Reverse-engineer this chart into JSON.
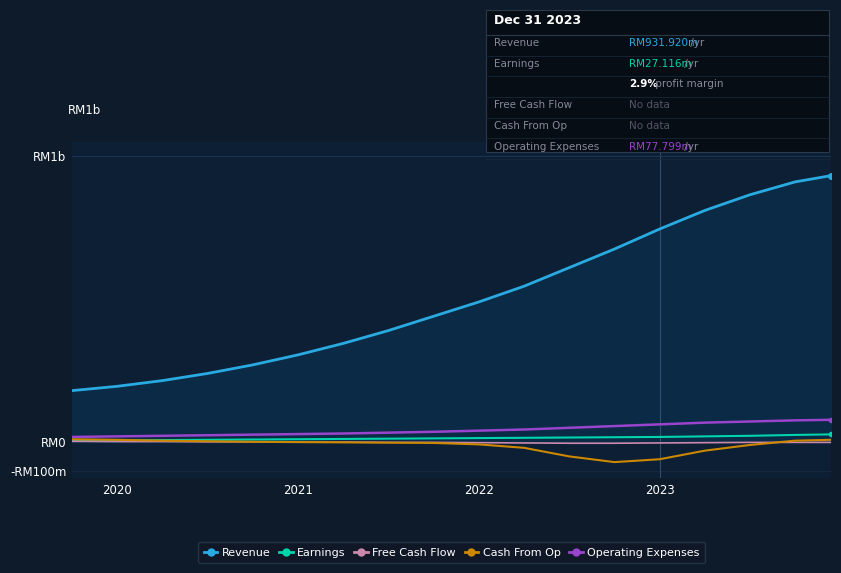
{
  "bg_color": "#0d1b2a",
  "chart_bg": "#0d1f35",
  "info_box_bg": "#070d14",
  "x_years": [
    2019.75,
    2020.0,
    2020.25,
    2020.5,
    2020.75,
    2021.0,
    2021.25,
    2021.5,
    2021.75,
    2022.0,
    2022.25,
    2022.5,
    2022.75,
    2023.0,
    2023.25,
    2023.5,
    2023.75,
    2023.95
  ],
  "revenue": [
    180,
    195,
    215,
    240,
    270,
    305,
    345,
    390,
    440,
    490,
    545,
    610,
    675,
    745,
    810,
    865,
    910,
    932
  ],
  "earnings": [
    5,
    6,
    7,
    8,
    9,
    10,
    11,
    12,
    13,
    14,
    15,
    16,
    17,
    18,
    20,
    22,
    25,
    27
  ],
  "free_cash_flow": [
    3,
    2,
    2,
    1,
    1,
    0,
    0,
    -1,
    -1,
    -2,
    -3,
    -4,
    -4,
    -3,
    -2,
    -1,
    -1,
    -1
  ],
  "cash_from_op": [
    10,
    8,
    5,
    3,
    1,
    0,
    -1,
    -2,
    -3,
    -8,
    -20,
    -50,
    -70,
    -60,
    -30,
    -10,
    5,
    8
  ],
  "operating_expenses": [
    18,
    20,
    22,
    24,
    26,
    28,
    30,
    33,
    36,
    40,
    44,
    50,
    56,
    62,
    68,
    72,
    76,
    78
  ],
  "revenue_color": "#29abe2",
  "earnings_color": "#00d4aa",
  "fcf_color": "#cc88aa",
  "cfo_color": "#cc8800",
  "opex_color": "#9944cc",
  "area_fill_color": "#0a2a45",
  "ylim_min": -125,
  "ylim_max": 1050,
  "ytick_vals": [
    -100,
    0,
    1000
  ],
  "ytick_labels": [
    "-RM100m",
    "RM0",
    "RM1b"
  ],
  "xtick_vals": [
    2020,
    2021,
    2022,
    2023
  ],
  "xtick_labels": [
    "2020",
    "2021",
    "2022",
    "2023"
  ],
  "vline_x": 2023.0,
  "info_title": "Dec 31 2023",
  "info_rows": [
    {
      "label": "Revenue",
      "value": "RM931.920m",
      "suffix": " /yr",
      "value_color": "#29abe2",
      "bold": false
    },
    {
      "label": "Earnings",
      "value": "RM27.116m",
      "suffix": " /yr",
      "value_color": "#00d4aa",
      "bold": false
    },
    {
      "label": "",
      "value": "2.9%",
      "suffix": " profit margin",
      "value_color": "#ffffff",
      "bold": true
    },
    {
      "label": "Free Cash Flow",
      "value": "No data",
      "suffix": "",
      "value_color": "#555566",
      "bold": false
    },
    {
      "label": "Cash From Op",
      "value": "No data",
      "suffix": "",
      "value_color": "#555566",
      "bold": false
    },
    {
      "label": "Operating Expenses",
      "value": "RM77.799m",
      "suffix": " /yr",
      "value_color": "#9944cc",
      "bold": false
    }
  ],
  "legend_items": [
    {
      "label": "Revenue",
      "color": "#29abe2"
    },
    {
      "label": "Earnings",
      "color": "#00d4aa"
    },
    {
      "label": "Free Cash Flow",
      "color": "#cc88aa"
    },
    {
      "label": "Cash From Op",
      "color": "#cc8800"
    },
    {
      "label": "Operating Expenses",
      "color": "#9944cc"
    }
  ]
}
